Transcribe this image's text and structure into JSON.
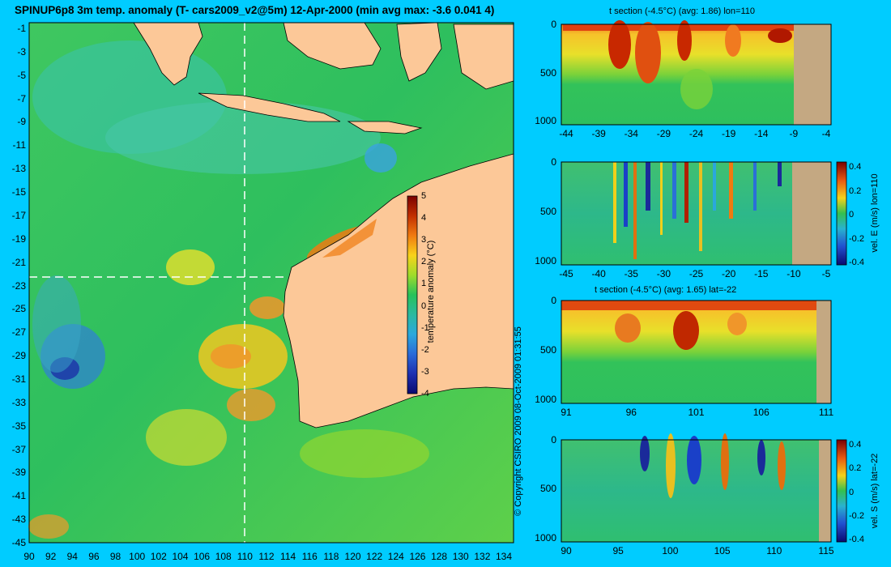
{
  "main_map": {
    "title": "SPINUP6p8 3m temp. anomaly (T- cars2009_v2@5m) 12-Apr-2000 (min avg max: -3.6 0.041 4)",
    "lat_ticks": [
      "-1",
      "-3",
      "-5",
      "-7",
      "-9",
      "-11",
      "-13",
      "-15",
      "-17",
      "-19",
      "-21",
      "-23",
      "-25",
      "-27",
      "-29",
      "-31",
      "-33",
      "-35",
      "-37",
      "-39",
      "-41",
      "-43",
      "-45"
    ],
    "lon_ticks": [
      "90",
      "92",
      "94",
      "96",
      "98",
      "100",
      "102",
      "104",
      "106",
      "108",
      "110",
      "112",
      "114",
      "116",
      "118",
      "120",
      "122",
      "124",
      "126",
      "128",
      "130",
      "132",
      "134"
    ],
    "section_lon": "110",
    "section_lat": "-22"
  },
  "colorbar": {
    "label": "temperature anomaly (°C)",
    "ticks": [
      "5",
      "4",
      "3",
      "2",
      "1",
      "0",
      "-1",
      "-2",
      "-3",
      "-4"
    ]
  },
  "copyright": "© Copyright CSIRO 2009   08-Oct-2009 01:31:55",
  "panels": {
    "p1": {
      "title": "t section (-4.5°C) (avg: 1.86) lon=110",
      "y_ticks": [
        "0",
        "500",
        "1000"
      ],
      "x_ticks": [
        "-44",
        "-39",
        "-34",
        "-29",
        "-24",
        "-19",
        "-14",
        "-9",
        "-4"
      ]
    },
    "p2": {
      "title": "",
      "y_ticks": [
        "0",
        "500",
        "1000"
      ],
      "x_ticks": [
        "-45",
        "-40",
        "-35",
        "-30",
        "-25",
        "-20",
        "-15",
        "-10",
        "-5"
      ],
      "cbar_label": "vel. E (m/s) lon=110",
      "cbar_ticks": [
        "0.4",
        "0.2",
        "0",
        "-0.2",
        "-0.4"
      ]
    },
    "p3": {
      "title": "t section (-4.5°C) (avg: 1.65) lat=-22",
      "y_ticks": [
        "0",
        "500",
        "1000"
      ],
      "x_ticks": [
        "91",
        "96",
        "101",
        "106",
        "111"
      ]
    },
    "p4": {
      "title": "",
      "y_ticks": [
        "0",
        "500",
        "1000"
      ],
      "x_ticks": [
        "90",
        "95",
        "100",
        "105",
        "110",
        "115"
      ],
      "cbar_label": "vel. S (m/s) lat=-22",
      "cbar_ticks": [
        "0.4",
        "0.2",
        "0",
        "-0.2",
        "-0.4"
      ]
    }
  }
}
